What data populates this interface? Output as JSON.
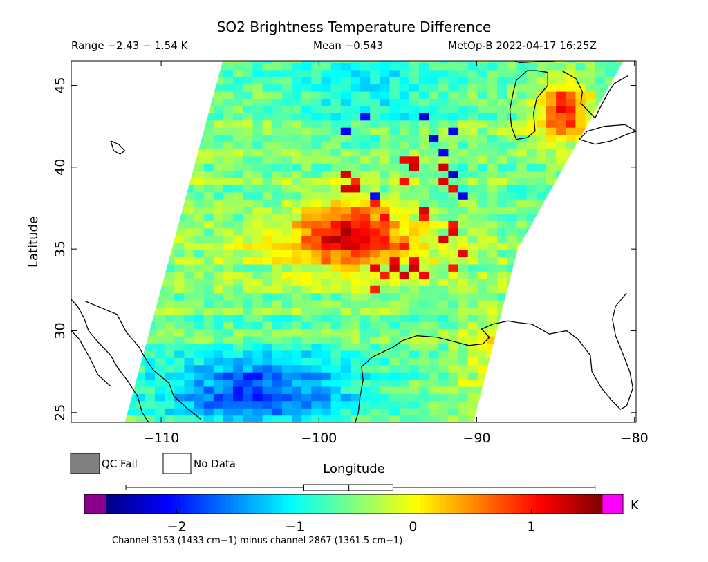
{
  "title": "SO2 Brightness Temperature Difference",
  "range_text": "Range −2.43 − 1.54 K",
  "mean_text": "Mean −0.543",
  "satellite_text": "MetOp-B 2022-04-17 16:25Z",
  "xlabel": "Longitude",
  "ylabel": "Latitude",
  "footnote": "Channel 3153 (1433 cm−1) minus channel 2867 (1361.5 cm−1)",
  "legend": {
    "qc_fail": "QC Fail",
    "no_data": "No Data"
  },
  "colors": {
    "qc_fail": "#808080",
    "no_data": "#ffffff",
    "coast": "#000000",
    "under": "#8b008b",
    "over": "#ff00ff"
  },
  "chart_data": {
    "type": "heatmap",
    "map_extent": {
      "lon": [
        -115.7,
        -79.9
      ],
      "lat": [
        24.4,
        46.5
      ]
    },
    "x_ticks": [
      -110,
      -100,
      -90,
      -80
    ],
    "x_tick_labels": [
      "−110",
      "−100",
      "−90",
      "−80"
    ],
    "y_ticks": [
      25,
      30,
      35,
      40,
      45
    ],
    "y_tick_labels": [
      "25",
      "30",
      "35",
      "40",
      "45"
    ],
    "colorbar": {
      "range": [
        -2.6,
        1.6
      ],
      "ticks": [
        -2,
        -1,
        0,
        1
      ],
      "tick_labels": [
        "−2",
        "−1",
        "0",
        "1"
      ],
      "unit": "K",
      "stats_box": {
        "min": -2.43,
        "mean": -0.543,
        "max": 1.54,
        "box_low": -0.93,
        "box_high": -0.17
      }
    },
    "swath_edges_lon": {
      "west": [
        [
          24.4,
          -112.3
        ],
        [
          46.5,
          -106.1
        ]
      ],
      "east": [
        [
          24.4,
          -90.2
        ],
        [
          35.0,
          -87.4
        ],
        [
          46.5,
          -80.7
        ]
      ]
    },
    "features": [
      {
        "name": "central-maximum",
        "lon": -98,
        "lat": 36.0,
        "value": 1.0
      },
      {
        "name": "great-lakes-band",
        "lon": -84,
        "lat": 43.5,
        "value": 1.2
      },
      {
        "name": "southern-minimum",
        "lon": -104,
        "lat": 26.5,
        "value": -1.9
      }
    ]
  }
}
